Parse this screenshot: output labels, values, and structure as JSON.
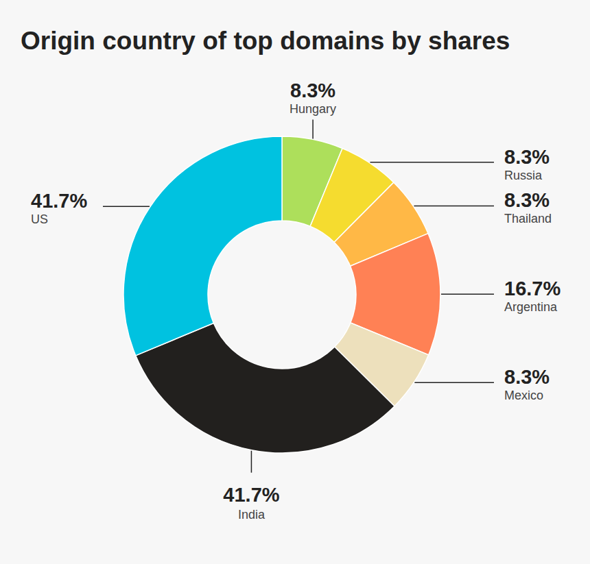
{
  "chart_data": {
    "type": "donut",
    "title": "Origin country of top domains by shares",
    "categories": [
      "Hungary",
      "Russia",
      "Thailand",
      "Argentina",
      "Mexico",
      "India",
      "US"
    ],
    "values": [
      8.3,
      8.3,
      8.3,
      16.7,
      8.3,
      41.7,
      41.7
    ],
    "value_labels": [
      "8.3%",
      "8.3%",
      "8.3%",
      "16.7%",
      "8.3%",
      "41.7%",
      "41.7%"
    ],
    "colors": [
      "#addf5b",
      "#f5dc2f",
      "#ffb846",
      "#ff8155",
      "#ede0bc",
      "#22201e",
      "#00c2e0"
    ],
    "data_labels": true
  }
}
